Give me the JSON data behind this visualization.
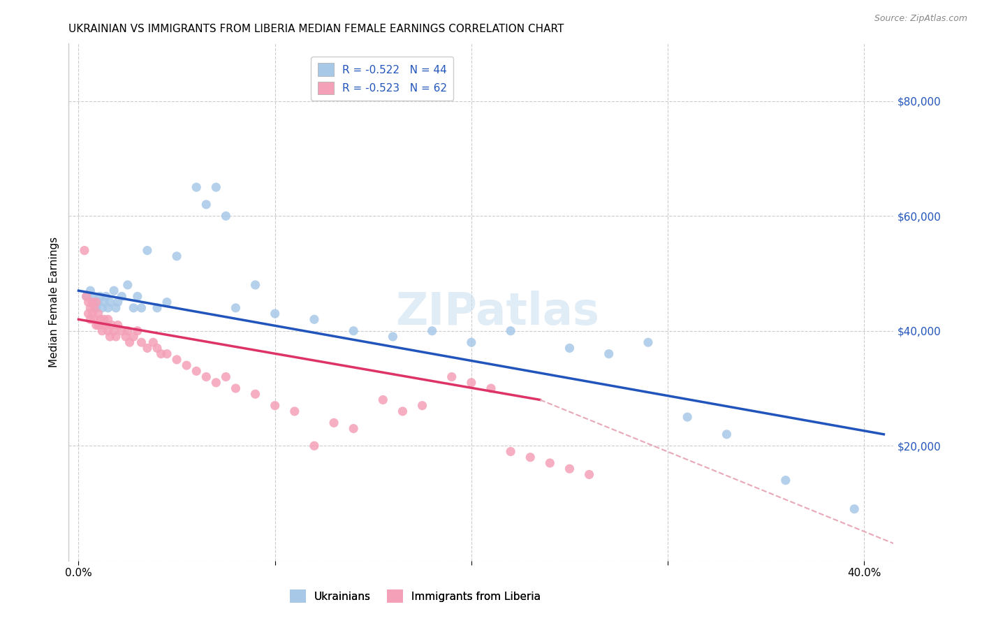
{
  "title": "UKRAINIAN VS IMMIGRANTS FROM LIBERIA MEDIAN FEMALE EARNINGS CORRELATION CHART",
  "source": "Source: ZipAtlas.com",
  "ylabel": "Median Female Earnings",
  "ylim": [
    0,
    90000
  ],
  "xlim": [
    -0.005,
    0.415
  ],
  "yticks": [
    0,
    20000,
    40000,
    60000,
    80000
  ],
  "right_ytick_vals": [
    80000,
    60000,
    40000,
    20000
  ],
  "legend_r_ukrainian": "R = -0.522",
  "legend_n_ukrainian": "N = 44",
  "legend_r_liberia": "R = -0.523",
  "legend_n_liberia": "N = 62",
  "ukrainian_color": "#a8c8e8",
  "liberia_color": "#f4a0b8",
  "trendline_ukrainian_color": "#2255bb",
  "trendline_liberia_color": "#dd3366",
  "dashed_extension_color": "#e8a8b8",
  "background_color": "#ffffff",
  "grid_color": "#cccccc",
  "watermark": "ZIPatlas",
  "scatter_size": 90,
  "ukrainians_x": [
    0.004,
    0.006,
    0.007,
    0.008,
    0.009,
    0.01,
    0.011,
    0.012,
    0.013,
    0.014,
    0.015,
    0.016,
    0.018,
    0.019,
    0.02,
    0.022,
    0.025,
    0.028,
    0.03,
    0.032,
    0.035,
    0.04,
    0.045,
    0.05,
    0.06,
    0.065,
    0.07,
    0.075,
    0.08,
    0.09,
    0.1,
    0.12,
    0.14,
    0.16,
    0.18,
    0.2,
    0.22,
    0.25,
    0.27,
    0.29,
    0.31,
    0.33,
    0.36,
    0.395
  ],
  "ukrainians_y": [
    46000,
    47000,
    46000,
    45000,
    44000,
    45000,
    46000,
    44000,
    45000,
    46000,
    44000,
    45000,
    47000,
    44000,
    45000,
    46000,
    48000,
    44000,
    46000,
    44000,
    54000,
    44000,
    45000,
    53000,
    65000,
    62000,
    65000,
    60000,
    44000,
    48000,
    43000,
    42000,
    40000,
    39000,
    40000,
    38000,
    40000,
    37000,
    36000,
    38000,
    25000,
    22000,
    14000,
    9000
  ],
  "liberia_x": [
    0.003,
    0.004,
    0.005,
    0.005,
    0.006,
    0.006,
    0.007,
    0.007,
    0.008,
    0.008,
    0.009,
    0.009,
    0.01,
    0.01,
    0.011,
    0.012,
    0.012,
    0.013,
    0.014,
    0.015,
    0.015,
    0.016,
    0.017,
    0.018,
    0.019,
    0.02,
    0.022,
    0.024,
    0.025,
    0.026,
    0.028,
    0.03,
    0.032,
    0.035,
    0.038,
    0.04,
    0.042,
    0.045,
    0.05,
    0.055,
    0.06,
    0.065,
    0.07,
    0.075,
    0.08,
    0.09,
    0.1,
    0.11,
    0.12,
    0.13,
    0.14,
    0.155,
    0.165,
    0.175,
    0.19,
    0.2,
    0.21,
    0.22,
    0.23,
    0.24,
    0.25,
    0.26
  ],
  "liberia_y": [
    54000,
    46000,
    45000,
    43000,
    44000,
    42000,
    45000,
    43000,
    44000,
    42000,
    45000,
    41000,
    43000,
    41000,
    42000,
    41000,
    40000,
    42000,
    41000,
    42000,
    40000,
    39000,
    41000,
    40000,
    39000,
    41000,
    40000,
    39000,
    40000,
    38000,
    39000,
    40000,
    38000,
    37000,
    38000,
    37000,
    36000,
    36000,
    35000,
    34000,
    33000,
    32000,
    31000,
    32000,
    30000,
    29000,
    27000,
    26000,
    20000,
    24000,
    23000,
    28000,
    26000,
    27000,
    32000,
    31000,
    30000,
    19000,
    18000,
    17000,
    16000,
    15000
  ],
  "trendline_u_x0": 0.0,
  "trendline_u_x1": 0.41,
  "trendline_u_y0": 47000,
  "trendline_u_y1": 22000,
  "trendline_l_x0": 0.0,
  "trendline_l_x1": 0.235,
  "trendline_l_y0": 42000,
  "trendline_l_y1": 28000,
  "trendline_l_dash_x0": 0.235,
  "trendline_l_dash_x1": 0.415,
  "trendline_l_dash_y0": 28000,
  "trendline_l_dash_y1": 3000
}
